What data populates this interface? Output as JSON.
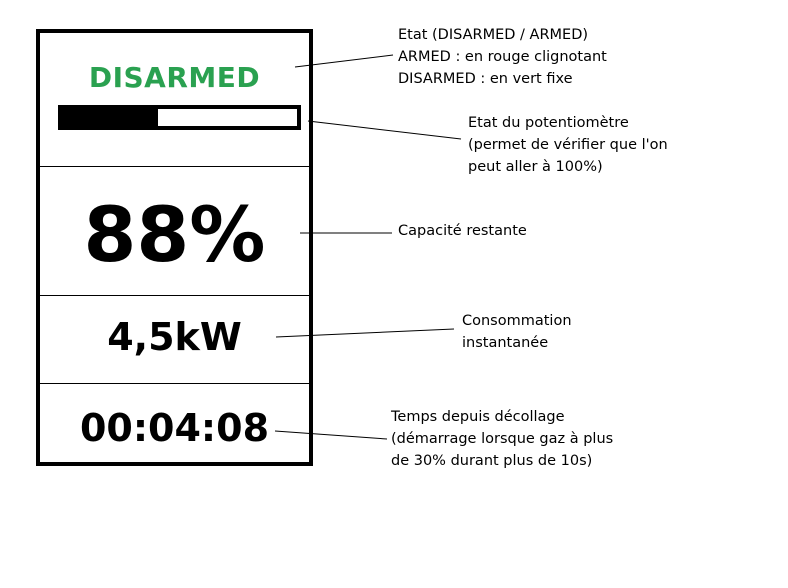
{
  "display": {
    "status": "DISARMED",
    "status_color": "#2aa150",
    "potentiometer_fraction": 0.41,
    "capacity": "88%",
    "power": "4,5kW",
    "timer": "00:04:08"
  },
  "annotations": {
    "status": [
      "Etat (DISARMED / ARMED)",
      "ARMED : en rouge clignotant",
      "DISARMED : en vert fixe"
    ],
    "potentiometer": [
      "Etat du potentiomètre",
      "(permet de vérifier que l'on",
      "peut aller à 100%)"
    ],
    "capacity": [
      "Capacité restante"
    ],
    "power": [
      "Consommation",
      "instantanée"
    ],
    "timer": [
      "Temps depuis décollage",
      "(démarrage lorsque gaz à plus",
      "de 30% durant plus de 10s)"
    ]
  }
}
